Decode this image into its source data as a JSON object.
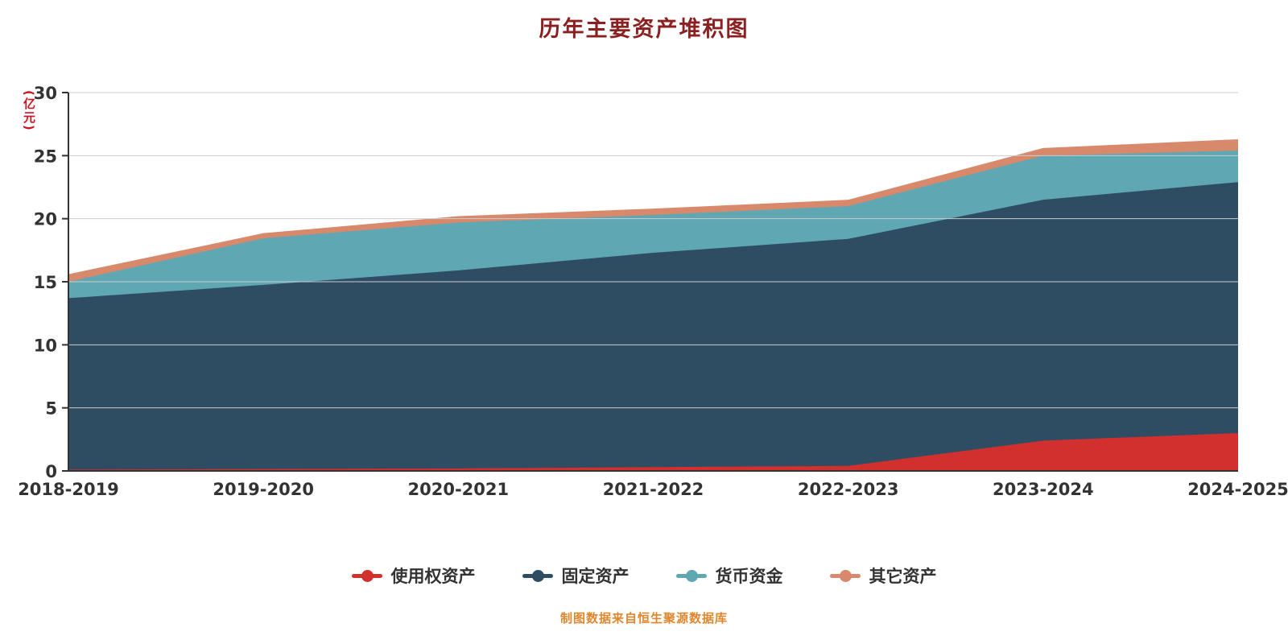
{
  "title": "历年主要资产堆积图",
  "footer": "制图数据来自恒生聚源数据库",
  "colors": {
    "title": "#8c1f1f",
    "axis_name": "#cf1322",
    "axis_line": "#333333",
    "tick_label": "#333333",
    "gridline": "#cccccc",
    "footer": "#e0862d",
    "background": "#ffffff"
  },
  "chart_data": {
    "type": "area",
    "stacked": true,
    "title": "历年主要资产堆积图",
    "xlabel": "",
    "ylabel": "(亿元)",
    "ylim": [
      0,
      30
    ],
    "ytick_interval": 5,
    "yticks": [
      0,
      5,
      10,
      15,
      20,
      25,
      30
    ],
    "grid": true,
    "legend_position": "bottom",
    "categories": [
      "2018-2019",
      "2019-2020",
      "2020-2021",
      "2021-2022",
      "2022-2023",
      "2023-2024",
      "2024-2025"
    ],
    "series": [
      {
        "name": "使用权资产",
        "color": "#d22f2f",
        "values": [
          0.1,
          0.15,
          0.2,
          0.3,
          0.4,
          2.4,
          3.0
        ]
      },
      {
        "name": "固定资产",
        "color": "#2e4d63",
        "values": [
          13.6,
          14.6,
          15.7,
          17.0,
          18.0,
          19.1,
          19.9
        ]
      },
      {
        "name": "货币资金",
        "color": "#5fa7b3",
        "values": [
          1.3,
          3.7,
          3.8,
          3.0,
          2.6,
          3.5,
          2.5
        ]
      },
      {
        "name": "其它资产",
        "color": "#d9896b",
        "values": [
          0.6,
          0.4,
          0.5,
          0.5,
          0.5,
          0.6,
          0.9
        ]
      }
    ]
  }
}
